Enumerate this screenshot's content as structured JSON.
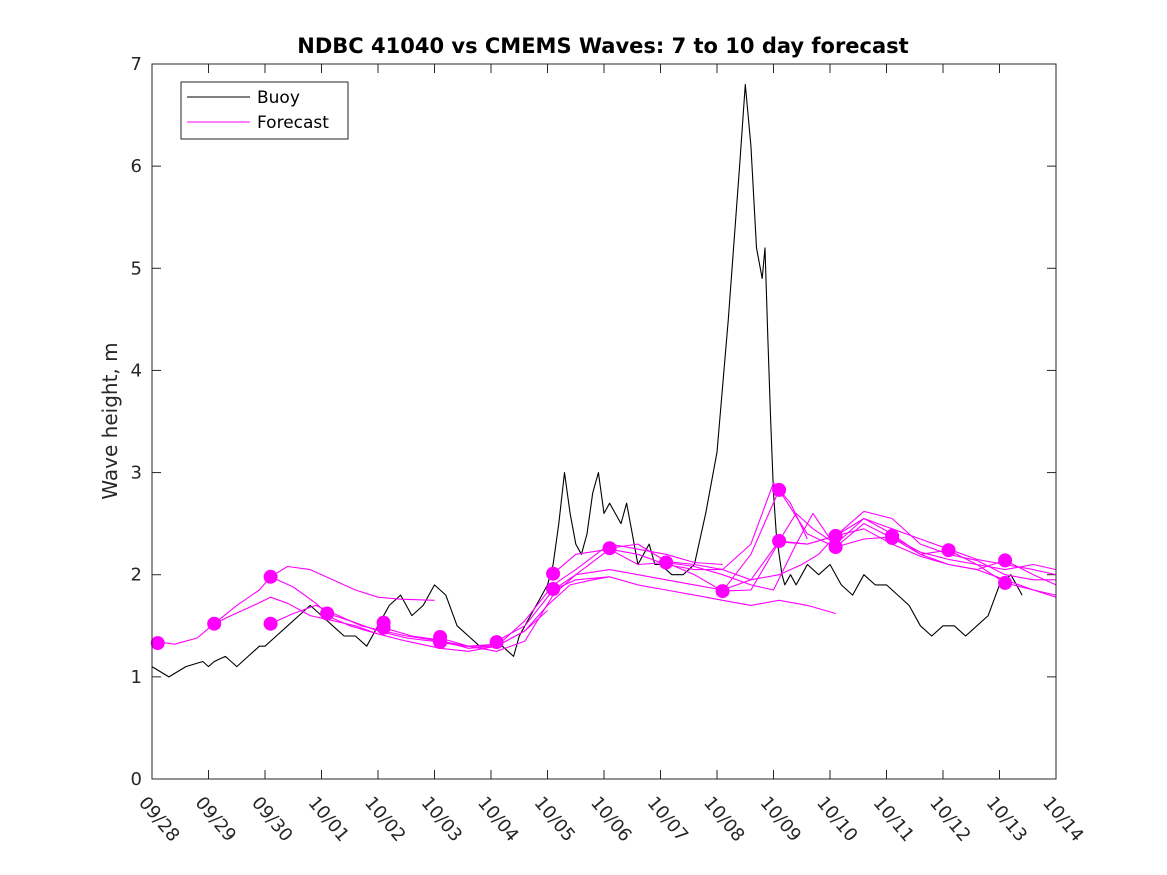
{
  "chart_data": {
    "type": "line",
    "title": "NDBC 41040 vs CMEMS Waves: 7 to 10 day forecast",
    "xlabel": "",
    "ylabel": "Wave height, m",
    "ylim": [
      0,
      7
    ],
    "yticks": [
      0,
      1,
      2,
      3,
      4,
      5,
      6,
      7
    ],
    "xlim_days": [
      0,
      16
    ],
    "xtick_labels": [
      "09/28",
      "09/29",
      "09/30",
      "10/01",
      "10/02",
      "10/03",
      "10/04",
      "10/05",
      "10/06",
      "10/07",
      "10/08",
      "10/09",
      "10/10",
      "10/11",
      "10/12",
      "10/13",
      "10/14"
    ],
    "legend": [
      {
        "name": "Buoy",
        "color": "#000000"
      },
      {
        "name": "Forecast",
        "color": "#ff00ff"
      }
    ],
    "legend_position": "top-left",
    "colors": {
      "buoy": "#000000",
      "forecast": "#ff00ff",
      "axis": "#262626"
    },
    "buoy": {
      "name": "Buoy",
      "x": [
        0,
        0.3,
        0.6,
        0.9,
        1.0,
        1.1,
        1.3,
        1.5,
        1.7,
        1.9,
        2.0,
        2.2,
        2.4,
        2.6,
        2.8,
        3.0,
        3.2,
        3.4,
        3.6,
        3.8,
        4.0,
        4.2,
        4.4,
        4.6,
        4.8,
        5.0,
        5.2,
        5.4,
        5.6,
        5.8,
        6.0,
        6.2,
        6.4,
        6.5,
        6.6,
        6.7,
        6.8,
        6.9,
        7.0,
        7.1,
        7.2,
        7.3,
        7.4,
        7.5,
        7.6,
        7.7,
        7.8,
        7.9,
        8.0,
        8.1,
        8.2,
        8.3,
        8.4,
        8.5,
        8.6,
        8.7,
        8.8,
        8.9,
        9.0,
        9.2,
        9.4,
        9.6,
        9.8,
        10.0,
        10.2,
        10.4,
        10.5,
        10.6,
        10.7,
        10.8,
        10.85,
        10.9,
        10.95,
        11.0,
        11.05,
        11.1,
        11.15,
        11.2,
        11.3,
        11.4,
        11.5,
        11.6,
        11.8,
        12.0,
        12.2,
        12.4,
        12.6,
        12.8,
        13.0,
        13.2,
        13.4,
        13.6,
        13.8,
        14.0,
        14.2,
        14.4,
        14.6,
        14.8,
        15.0,
        15.1,
        15.2,
        15.3,
        15.4
      ],
      "y": [
        1.1,
        1.0,
        1.1,
        1.15,
        1.1,
        1.15,
        1.2,
        1.1,
        1.2,
        1.3,
        1.3,
        1.4,
        1.5,
        1.6,
        1.7,
        1.6,
        1.5,
        1.4,
        1.4,
        1.3,
        1.5,
        1.7,
        1.8,
        1.6,
        1.7,
        1.9,
        1.8,
        1.5,
        1.4,
        1.3,
        1.3,
        1.3,
        1.2,
        1.4,
        1.5,
        1.6,
        1.7,
        1.8,
        1.9,
        2.1,
        2.5,
        3.0,
        2.6,
        2.3,
        2.2,
        2.4,
        2.8,
        3.0,
        2.6,
        2.7,
        2.6,
        2.5,
        2.7,
        2.4,
        2.1,
        2.2,
        2.3,
        2.1,
        2.1,
        2.0,
        2.0,
        2.1,
        2.6,
        3.2,
        4.5,
        6.0,
        6.8,
        6.2,
        5.2,
        4.9,
        5.2,
        4.3,
        3.5,
        2.8,
        2.4,
        2.2,
        2.0,
        1.9,
        2.0,
        1.9,
        2.0,
        2.1,
        2.0,
        2.1,
        1.9,
        1.8,
        2.0,
        1.9,
        1.9,
        1.8,
        1.7,
        1.5,
        1.4,
        1.5,
        1.5,
        1.4,
        1.5,
        1.6,
        1.9,
        1.95,
        2.0,
        1.9,
        1.8
      ]
    },
    "forecast": [
      {
        "name": "Forecast",
        "x": [
          0,
          0.4,
          0.8,
          1.1,
          1.4,
          1.8,
          2.1,
          2.4,
          2.8,
          3.2,
          3.6,
          4.0
        ],
        "y": [
          1.35,
          1.32,
          1.38,
          1.52,
          1.6,
          1.7,
          1.78,
          1.72,
          1.6,
          1.55,
          1.5,
          1.42
        ]
      },
      {
        "name": "Forecast",
        "x": [
          1.1,
          1.5,
          1.9,
          2.1,
          2.4,
          2.8,
          3.2,
          3.6,
          4.0,
          4.4,
          5.0
        ],
        "y": [
          1.52,
          1.7,
          1.85,
          1.98,
          2.08,
          2.05,
          1.95,
          1.85,
          1.78,
          1.76,
          1.75
        ]
      },
      {
        "name": "Forecast",
        "x": [
          2.1,
          2.5,
          2.9,
          3.3,
          3.7,
          4.1,
          4.5,
          5.1,
          5.6,
          6.1
        ],
        "y": [
          1.52,
          1.62,
          1.7,
          1.6,
          1.5,
          1.45,
          1.4,
          1.35,
          1.3,
          1.32
        ]
      },
      {
        "name": "Forecast",
        "x": [
          2.1,
          2.5,
          2.9,
          3.1,
          3.5,
          4.0,
          4.5,
          5.1,
          5.5,
          6.1,
          6.6,
          7.0
        ],
        "y": [
          1.98,
          1.88,
          1.72,
          1.62,
          1.55,
          1.45,
          1.38,
          1.34,
          1.3,
          1.3,
          1.45,
          1.65
        ]
      },
      {
        "name": "Forecast",
        "x": [
          3.1,
          3.5,
          4.0,
          4.5,
          5.1,
          5.6,
          6.1,
          6.6,
          7.0,
          7.4,
          7.8,
          8.1
        ],
        "y": [
          1.6,
          1.5,
          1.42,
          1.35,
          1.28,
          1.25,
          1.3,
          1.45,
          1.7,
          1.9,
          1.95,
          1.98
        ]
      },
      {
        "name": "Forecast",
        "x": [
          4.1,
          4.6,
          5.1,
          5.6,
          6.1,
          6.6,
          7.1,
          7.5,
          8.1,
          8.6,
          9.1,
          9.6,
          10.1
        ],
        "y": [
          1.48,
          1.4,
          1.36,
          1.28,
          1.3,
          1.55,
          1.9,
          2.05,
          2.3,
          2.25,
          2.2,
          2.12,
          2.1
        ]
      },
      {
        "name": "Forecast",
        "x": [
          5.1,
          5.6,
          6.1,
          6.6,
          7.1,
          7.5,
          8.1,
          8.6,
          9.1,
          9.6,
          10.1,
          10.6,
          11.0,
          11.3,
          11.6
        ],
        "y": [
          1.38,
          1.3,
          1.25,
          1.35,
          1.8,
          2.0,
          2.25,
          2.2,
          2.1,
          2.05,
          2.05,
          2.3,
          2.9,
          2.7,
          2.35
        ]
      },
      {
        "name": "Forecast",
        "x": [
          6.1,
          6.6,
          7.1,
          7.5,
          8.1,
          8.6,
          9.1,
          9.6,
          10.1,
          10.6,
          11.1,
          11.6,
          12.1
        ],
        "y": [
          1.35,
          1.5,
          1.85,
          1.95,
          1.98,
          1.9,
          1.85,
          1.8,
          1.75,
          1.7,
          1.75,
          1.7,
          1.62
        ]
      },
      {
        "name": "Forecast",
        "x": [
          7.1,
          7.5,
          8.1,
          8.6,
          9.1,
          9.6,
          10.1,
          10.6,
          11.1,
          11.4,
          11.7,
          12.1,
          12.6,
          13.1,
          13.6,
          14.1,
          14.6,
          15.1,
          15.6,
          16.0
        ],
        "y": [
          1.85,
          2.0,
          2.05,
          2.0,
          1.95,
          1.9,
          1.85,
          1.95,
          2.33,
          2.6,
          2.45,
          2.3,
          2.55,
          2.45,
          2.35,
          2.25,
          2.15,
          2.1,
          2.05,
          2.0
        ]
      },
      {
        "name": "Forecast",
        "x": [
          7.1,
          7.5,
          8.1,
          8.6,
          9.1,
          9.6,
          10.1,
          10.6,
          11.0,
          11.4,
          11.7,
          12.1,
          12.6,
          13.1,
          13.6,
          14.1,
          14.6,
          15.1,
          15.6,
          16.0
        ],
        "y": [
          2.01,
          2.2,
          2.25,
          2.1,
          2.12,
          2.08,
          2.0,
          1.9,
          1.85,
          2.3,
          2.6,
          2.27,
          2.35,
          2.37,
          2.22,
          2.15,
          2.1,
          2.05,
          2.1,
          2.05
        ]
      },
      {
        "name": "Forecast",
        "x": [
          8.1,
          8.6,
          9.1,
          9.6,
          10.1,
          10.6,
          11.1,
          11.5,
          11.8,
          12.1,
          12.6,
          13.1,
          13.6,
          14.1,
          14.6,
          15.1,
          15.6,
          16.0
        ],
        "y": [
          2.26,
          2.3,
          2.13,
          2.1,
          2.05,
          1.95,
          2.0,
          2.1,
          2.2,
          2.38,
          2.55,
          2.4,
          2.2,
          2.24,
          2.1,
          1.92,
          1.85,
          1.8
        ]
      },
      {
        "name": "Forecast",
        "x": [
          9.1,
          9.6,
          10.1,
          10.6,
          11.1,
          11.6,
          12.1,
          12.6,
          13.1,
          13.6,
          14.1,
          14.6,
          15.1,
          15.6,
          16.0
        ],
        "y": [
          2.12,
          2.0,
          1.84,
          1.85,
          2.32,
          2.3,
          2.38,
          2.62,
          2.55,
          2.3,
          2.2,
          2.14,
          2.0,
          1.95,
          1.95
        ]
      },
      {
        "name": "Forecast",
        "x": [
          10.1,
          10.6,
          11.1,
          11.6,
          12.1,
          12.6,
          13.1,
          13.6,
          14.1,
          14.6,
          15.1,
          15.6,
          16.0
        ],
        "y": [
          1.84,
          2.2,
          2.83,
          2.4,
          2.27,
          2.5,
          2.36,
          2.2,
          2.1,
          2.05,
          1.95,
          1.85,
          1.78
        ]
      },
      {
        "name": "Forecast",
        "x": [
          11.1,
          11.6,
          12.1,
          12.6,
          13.1,
          13.6,
          14.1,
          14.6,
          15.1,
          15.6,
          16.0
        ],
        "y": [
          2.33,
          2.3,
          2.38,
          2.45,
          2.3,
          2.18,
          2.1,
          2.05,
          2.14,
          2.0,
          1.9
        ]
      }
    ],
    "forecast_markers": {
      "x": [
        0.1,
        1.1,
        2.1,
        2.1,
        3.1,
        4.1,
        4.1,
        5.1,
        5.1,
        6.1,
        7.1,
        7.1,
        8.1,
        9.1,
        10.1,
        11.1,
        11.1,
        12.1,
        12.1,
        13.1,
        13.1,
        14.1,
        15.1,
        15.1
      ],
      "y": [
        1.33,
        1.52,
        1.98,
        1.52,
        1.62,
        1.53,
        1.48,
        1.39,
        1.34,
        1.34,
        2.01,
        1.86,
        2.26,
        2.12,
        1.84,
        2.83,
        2.33,
        2.38,
        2.27,
        2.38,
        2.36,
        2.24,
        2.14,
        1.92
      ]
    }
  }
}
